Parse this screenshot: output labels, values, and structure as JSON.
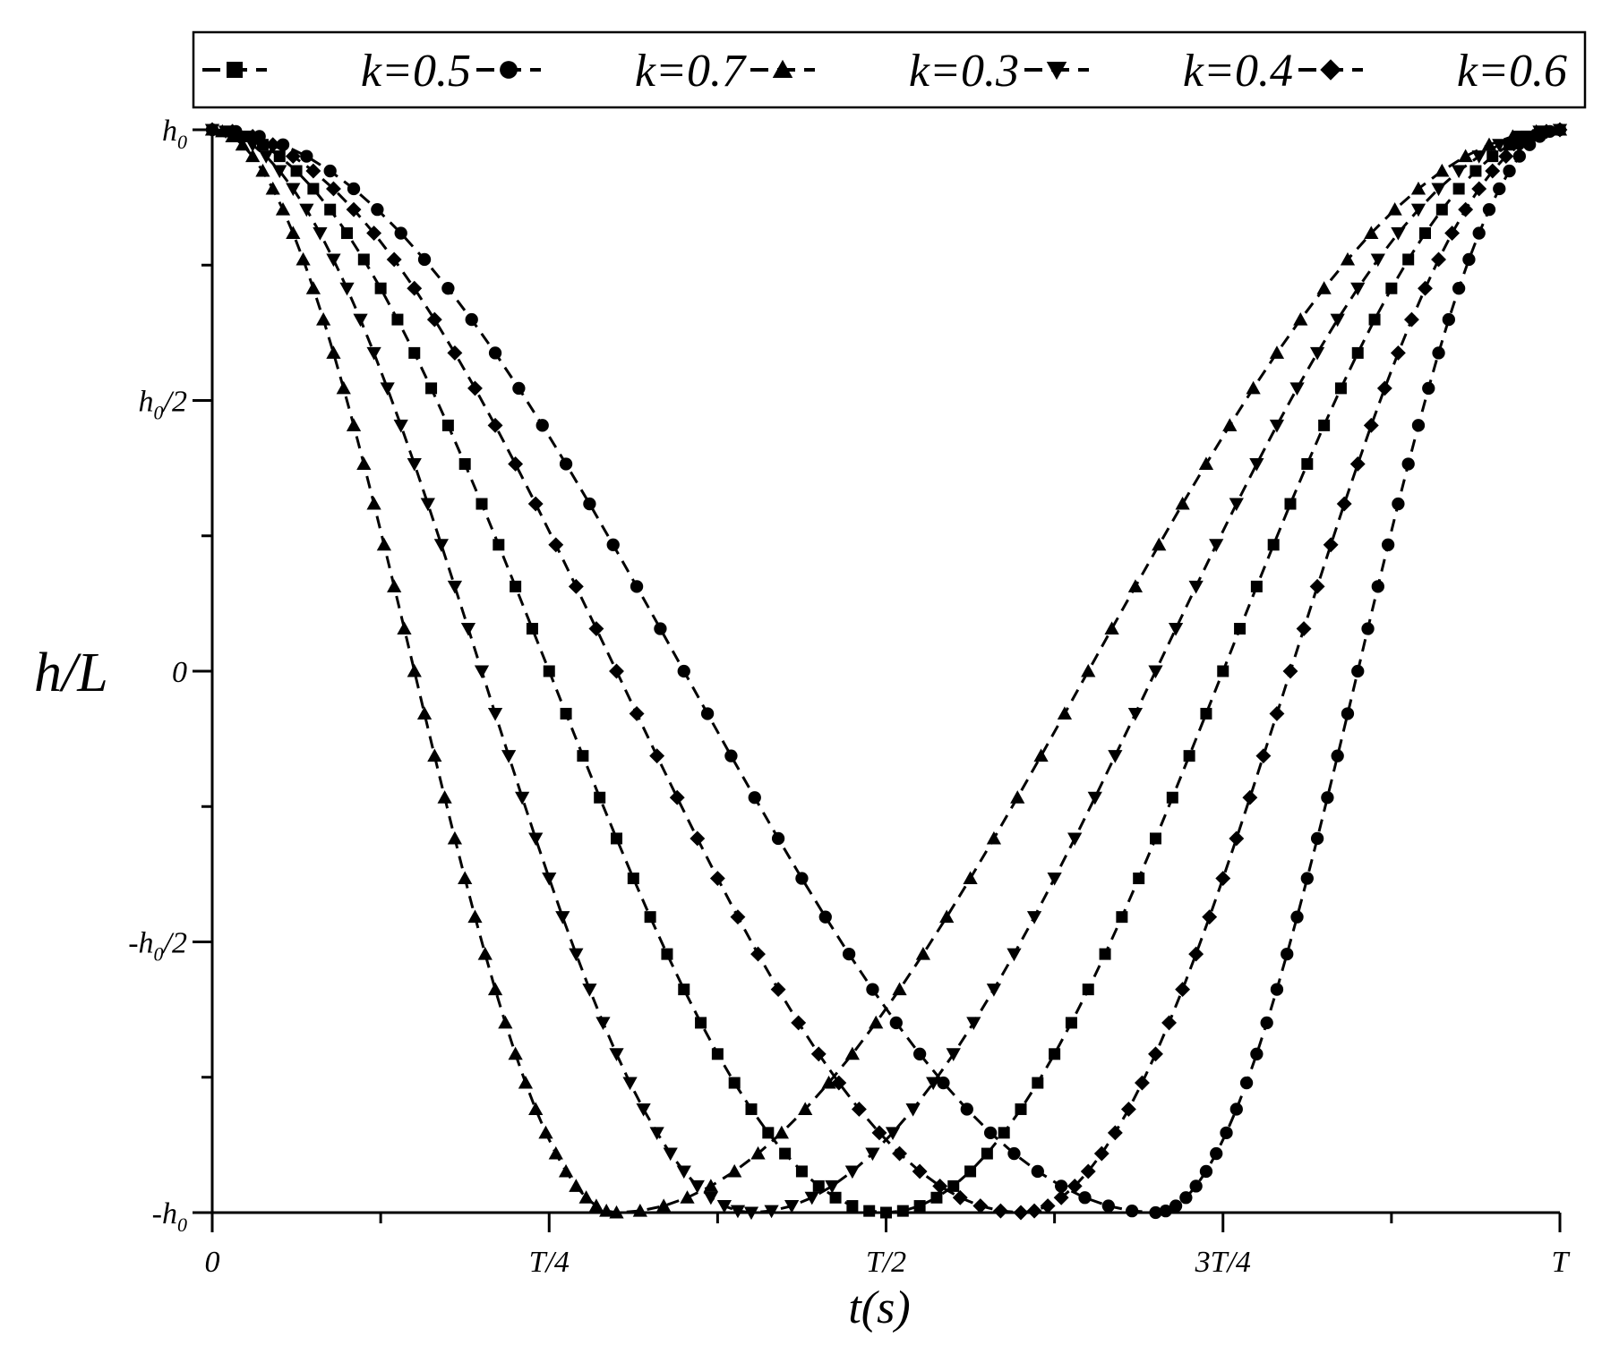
{
  "chart_data": {
    "type": "line",
    "xlabel": "t(s)",
    "ylabel": "h/L",
    "xlim": [
      0,
      1
    ],
    "ylim": [
      -1,
      1
    ],
    "x_ticks": [
      {
        "value": 0,
        "label": "0"
      },
      {
        "value": 0.25,
        "label": "T/4"
      },
      {
        "value": 0.5,
        "label": "T/2"
      },
      {
        "value": 0.75,
        "label": "3T/4"
      },
      {
        "value": 1,
        "label": "T"
      }
    ],
    "y_ticks": [
      {
        "value": 1,
        "base": "h",
        "sub": "0",
        "prefix": "",
        "suffix": ""
      },
      {
        "value": 0.5,
        "base": "h",
        "sub": "0",
        "prefix": "",
        "suffix": "/2"
      },
      {
        "value": 0,
        "base": "0",
        "sub": "",
        "prefix": "",
        "suffix": ""
      },
      {
        "value": -0.5,
        "base": "h",
        "sub": "0",
        "prefix": "-",
        "suffix": "/2"
      },
      {
        "value": -1,
        "base": "h",
        "sub": "0",
        "prefix": "-",
        "suffix": ""
      }
    ],
    "legend_position": "top",
    "series": [
      {
        "name": "k=0.5",
        "marker": "square",
        "k": 0.5,
        "points_per_segment": 40
      },
      {
        "name": "k=0.7",
        "marker": "circle",
        "k": 0.7,
        "points_per_segment": 40
      },
      {
        "name": "k=0.3",
        "marker": "triangle-up",
        "k": 0.3,
        "points_per_segment": 40
      },
      {
        "name": "k=0.4",
        "marker": "triangle-down",
        "k": 0.4,
        "points_per_segment": 40
      },
      {
        "name": "k=0.6",
        "marker": "diamond",
        "k": 0.6,
        "points_per_segment": 40
      }
    ],
    "curve_model": "h = cos(pi*t/k) for t<=k, h = -cos(pi*(t-k)/(1-k)) for t>k",
    "color": "#000000"
  }
}
